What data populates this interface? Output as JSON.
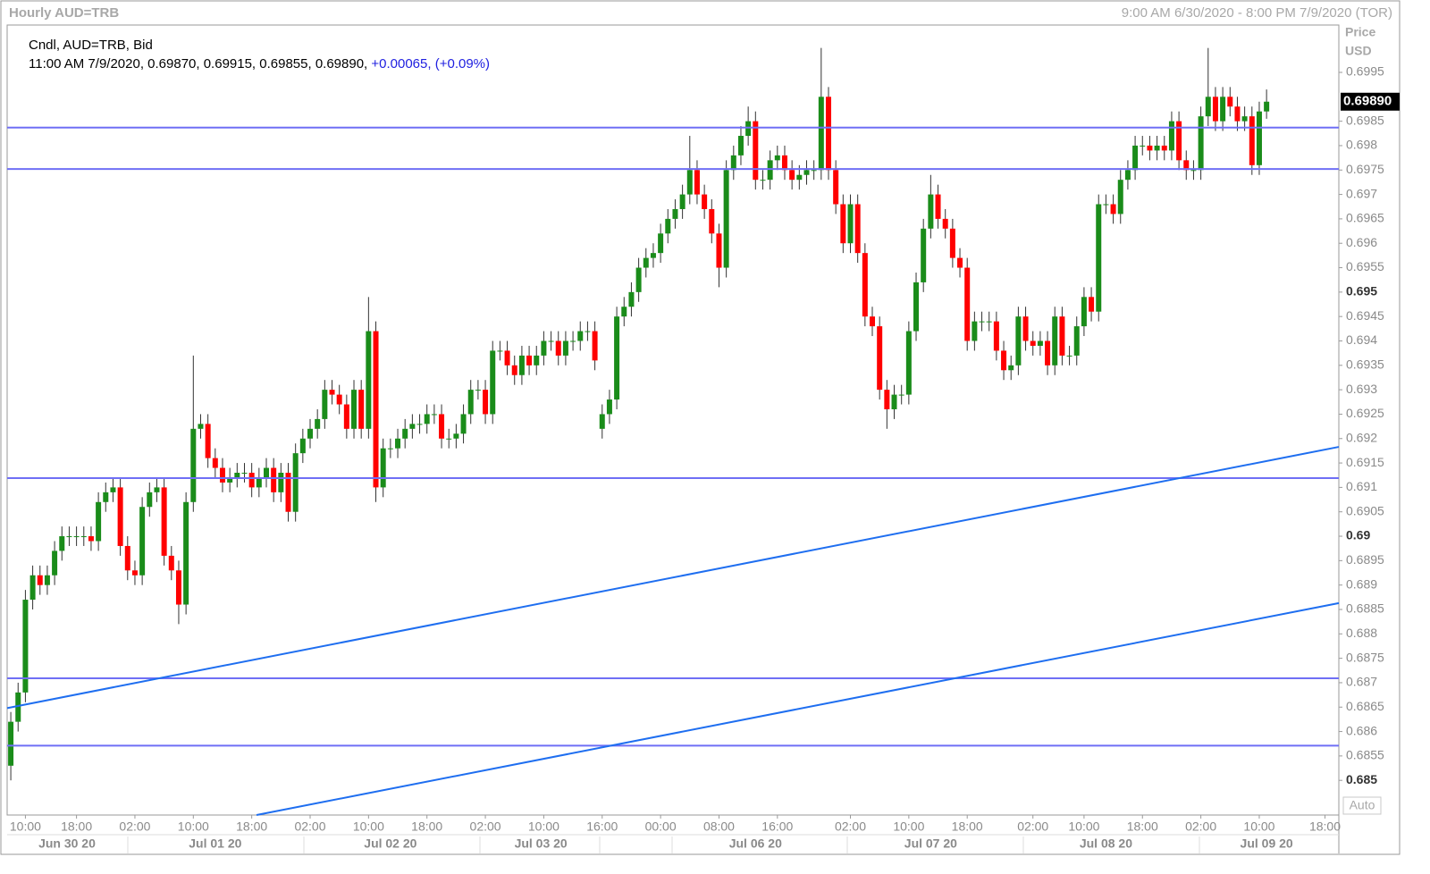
{
  "chart_data": {
    "type": "candlestick",
    "title": "Hourly AUD=TRB",
    "range_label": "9:00 AM 6/30/2020 - 8:00 PM 7/9/2020 (TOR)",
    "series_label": "Cndl, AUD=TRB, Bid",
    "info": "11:00 AM 7/9/2020, 0.69870, 0.69915, 0.69855, 0.69890,",
    "change": "+0.00065,",
    "change_pct": "(+0.09%)",
    "axis_title": "Price",
    "axis_unit": "USD",
    "auto_label": "Auto",
    "up_color": "#1a8c1a",
    "down_color": "#ff0000",
    "line_color": "#6f6ff5",
    "trend_color": "#1e6ef0",
    "last_price": {
      "value": 0.6989,
      "label": "0.69890"
    },
    "open": [
      0.6853,
      0.6862,
      0.6868,
      0.6887,
      0.6892,
      0.689,
      0.6892,
      0.6897,
      0.69,
      0.69,
      0.69,
      0.69,
      0.6899,
      0.6907,
      0.6909,
      0.691,
      0.6898,
      0.6893,
      0.6892,
      0.6906,
      0.6909,
      0.691,
      0.6896,
      0.6893,
      0.6886,
      0.6907,
      0.6922,
      0.6923,
      0.6916,
      0.6914,
      0.6911,
      0.6912,
      0.6913,
      0.6913,
      0.691,
      0.6912,
      0.6914,
      0.6909,
      0.6913,
      0.6905,
      0.6917,
      0.692,
      0.6922,
      0.6924,
      0.693,
      0.6929,
      0.6927,
      0.6922,
      0.693,
      0.6922,
      0.6942,
      0.691,
      0.6918,
      0.6918,
      0.692,
      0.6922,
      0.6923,
      0.6923,
      0.6925,
      0.6925,
      0.692,
      0.692,
      0.6921,
      0.6925,
      0.693,
      0.693,
      0.6925,
      0.6938,
      0.6938,
      0.6935,
      0.6933,
      0.6937,
      0.6935,
      0.6937,
      0.694,
      0.694,
      0.6937,
      0.694,
      0.694,
      0.6942,
      0.6942,
      0.6922,
      0.6925,
      0.6928,
      0.6945,
      0.6947,
      0.695,
      0.6955,
      0.6957,
      0.6958,
      0.6962,
      0.6965,
      0.6967,
      0.697,
      0.6975,
      0.697,
      0.6967,
      0.6962,
      0.6955,
      0.6975,
      0.6978,
      0.6982,
      0.6985,
      0.6973,
      0.6973,
      0.6977,
      0.6978,
      0.6975,
      0.6973,
      0.6974,
      0.6975,
      0.6975,
      0.699,
      0.6975,
      0.6968,
      0.696,
      0.6968,
      0.6958,
      0.6945,
      0.6943,
      0.693,
      0.6926,
      0.6929,
      0.6929,
      0.6942,
      0.6952,
      0.6963,
      0.697,
      0.6965,
      0.6963,
      0.6957,
      0.6955,
      0.694,
      0.6944,
      0.6944,
      0.6944,
      0.6938,
      0.6934,
      0.6935,
      0.6945,
      0.694,
      0.6939,
      0.694,
      0.6935,
      0.6945,
      0.6937,
      0.6937,
      0.6943,
      0.6949,
      0.6946,
      0.6968,
      0.6968,
      0.6966,
      0.6973,
      0.6975,
      0.698,
      0.698,
      0.6979,
      0.698,
      0.6979,
      0.6985,
      0.6977,
      0.6975,
      0.6975,
      0.6986,
      0.699,
      0.6985,
      0.699,
      0.6988,
      0.6985,
      0.6986,
      0.6976,
      0.6987
    ],
    "high": [
      0.6864,
      0.687,
      0.6889,
      0.6894,
      0.6894,
      0.6894,
      0.6899,
      0.6902,
      0.6902,
      0.6902,
      0.6902,
      0.6902,
      0.6909,
      0.6911,
      0.6912,
      0.6912,
      0.69,
      0.6895,
      0.6908,
      0.6911,
      0.6912,
      0.6912,
      0.6898,
      0.6895,
      0.6909,
      0.6937,
      0.6925,
      0.6925,
      0.6918,
      0.6916,
      0.6914,
      0.6915,
      0.6915,
      0.6915,
      0.6914,
      0.6916,
      0.6916,
      0.6915,
      0.6915,
      0.6919,
      0.6922,
      0.6924,
      0.6926,
      0.6932,
      0.6932,
      0.6931,
      0.6929,
      0.6932,
      0.6932,
      0.6949,
      0.6944,
      0.692,
      0.692,
      0.6922,
      0.6924,
      0.6925,
      0.6925,
      0.6927,
      0.6927,
      0.6927,
      0.6922,
      0.6923,
      0.6927,
      0.6932,
      0.6932,
      0.6932,
      0.694,
      0.694,
      0.694,
      0.6937,
      0.6939,
      0.6939,
      0.6939,
      0.6942,
      0.6942,
      0.6942,
      0.6942,
      0.6942,
      0.6944,
      0.6944,
      0.6944,
      0.6927,
      0.693,
      0.6947,
      0.6949,
      0.6952,
      0.6957,
      0.6959,
      0.696,
      0.6964,
      0.6967,
      0.6969,
      0.6972,
      0.6982,
      0.6977,
      0.6972,
      0.6969,
      0.6964,
      0.6977,
      0.698,
      0.6984,
      0.6988,
      0.6987,
      0.6975,
      0.6979,
      0.698,
      0.698,
      0.6977,
      0.6976,
      0.6977,
      0.6977,
      0.7,
      0.6992,
      0.6977,
      0.697,
      0.697,
      0.697,
      0.696,
      0.6947,
      0.6945,
      0.6932,
      0.6931,
      0.6931,
      0.6944,
      0.6954,
      0.6965,
      0.6974,
      0.6972,
      0.6967,
      0.6965,
      0.6959,
      0.6957,
      0.6946,
      0.6946,
      0.6946,
      0.6946,
      0.694,
      0.6937,
      0.6947,
      0.6947,
      0.6942,
      0.6942,
      0.6942,
      0.6947,
      0.6947,
      0.6939,
      0.6945,
      0.6951,
      0.6951,
      0.697,
      0.697,
      0.697,
      0.6975,
      0.6977,
      0.6982,
      0.6982,
      0.6982,
      0.6982,
      0.6982,
      0.6987,
      0.6987,
      0.6979,
      0.6977,
      0.6988,
      0.7,
      0.6992,
      0.6992,
      0.6992,
      0.699,
      0.6988,
      0.6988,
      0.6989,
      0.69915
    ],
    "low": [
      0.685,
      0.686,
      0.6866,
      0.6885,
      0.6888,
      0.6888,
      0.689,
      0.6895,
      0.6898,
      0.6898,
      0.6898,
      0.6897,
      0.6897,
      0.6905,
      0.6907,
      0.6896,
      0.6891,
      0.689,
      0.689,
      0.6904,
      0.6907,
      0.6894,
      0.6891,
      0.6882,
      0.6884,
      0.6905,
      0.692,
      0.6914,
      0.6912,
      0.6909,
      0.6909,
      0.691,
      0.6911,
      0.6908,
      0.6908,
      0.691,
      0.6907,
      0.6907,
      0.6903,
      0.6903,
      0.6915,
      0.6918,
      0.692,
      0.6922,
      0.6927,
      0.6925,
      0.692,
      0.692,
      0.692,
      0.692,
      0.6907,
      0.6908,
      0.6916,
      0.6916,
      0.6918,
      0.692,
      0.6921,
      0.6921,
      0.6923,
      0.6918,
      0.6918,
      0.6918,
      0.6919,
      0.6923,
      0.6928,
      0.6923,
      0.6923,
      0.6936,
      0.6933,
      0.6931,
      0.6931,
      0.6933,
      0.6933,
      0.6935,
      0.6938,
      0.6935,
      0.6935,
      0.6938,
      0.6938,
      0.694,
      0.6934,
      0.692,
      0.6923,
      0.6926,
      0.6943,
      0.6945,
      0.6948,
      0.6953,
      0.6955,
      0.6956,
      0.696,
      0.6963,
      0.6965,
      0.6968,
      0.6968,
      0.6965,
      0.696,
      0.6951,
      0.6953,
      0.6973,
      0.6976,
      0.698,
      0.6971,
      0.6971,
      0.6971,
      0.6975,
      0.6973,
      0.6971,
      0.6971,
      0.6972,
      0.6973,
      0.6973,
      0.6973,
      0.6966,
      0.6958,
      0.6958,
      0.6956,
      0.6943,
      0.6941,
      0.6928,
      0.6922,
      0.6924,
      0.6927,
      0.6927,
      0.694,
      0.695,
      0.6961,
      0.6963,
      0.6961,
      0.6955,
      0.6953,
      0.6938,
      0.6938,
      0.6942,
      0.6942,
      0.6936,
      0.6932,
      0.6932,
      0.6933,
      0.6938,
      0.6937,
      0.6937,
      0.6933,
      0.6933,
      0.6935,
      0.6935,
      0.6935,
      0.6941,
      0.6944,
      0.6944,
      0.6966,
      0.6964,
      0.6964,
      0.6971,
      0.6973,
      0.6978,
      0.6977,
      0.6977,
      0.6977,
      0.6977,
      0.6975,
      0.6973,
      0.6973,
      0.6973,
      0.6984,
      0.6983,
      0.6983,
      0.6986,
      0.6983,
      0.6983,
      0.6974,
      0.6974,
      0.69855
    ],
    "close": [
      0.6862,
      0.6868,
      0.6887,
      0.6892,
      0.689,
      0.6892,
      0.6897,
      0.69,
      0.69,
      0.69,
      0.69,
      0.6899,
      0.6907,
      0.6909,
      0.691,
      0.6898,
      0.6893,
      0.6892,
      0.6906,
      0.6909,
      0.691,
      0.6896,
      0.6893,
      0.6886,
      0.6907,
      0.6922,
      0.6923,
      0.6916,
      0.6914,
      0.6911,
      0.6912,
      0.6913,
      0.6913,
      0.691,
      0.6912,
      0.6914,
      0.6909,
      0.6913,
      0.6905,
      0.6917,
      0.692,
      0.6922,
      0.6924,
      0.693,
      0.6929,
      0.6927,
      0.6922,
      0.693,
      0.6922,
      0.6942,
      0.691,
      0.6918,
      0.6918,
      0.692,
      0.6922,
      0.6923,
      0.6923,
      0.6925,
      0.6925,
      0.692,
      0.692,
      0.6921,
      0.6925,
      0.693,
      0.693,
      0.6925,
      0.6938,
      0.6938,
      0.6935,
      0.6933,
      0.6937,
      0.6935,
      0.6937,
      0.694,
      0.694,
      0.6937,
      0.694,
      0.694,
      0.6942,
      0.6942,
      0.6936,
      0.6925,
      0.6928,
      0.6945,
      0.6947,
      0.695,
      0.6955,
      0.6957,
      0.6958,
      0.6962,
      0.6965,
      0.6967,
      0.697,
      0.6975,
      0.697,
      0.6967,
      0.6962,
      0.6955,
      0.6975,
      0.6978,
      0.6982,
      0.6985,
      0.6973,
      0.6973,
      0.6977,
      0.6978,
      0.6975,
      0.6973,
      0.6974,
      0.6975,
      0.6975,
      0.699,
      0.6975,
      0.6968,
      0.696,
      0.6968,
      0.6958,
      0.6945,
      0.6943,
      0.693,
      0.6926,
      0.6929,
      0.6929,
      0.6942,
      0.6952,
      0.6963,
      0.697,
      0.6965,
      0.6963,
      0.6957,
      0.6955,
      0.694,
      0.6944,
      0.6944,
      0.6944,
      0.6938,
      0.6934,
      0.6935,
      0.6945,
      0.694,
      0.6939,
      0.694,
      0.6935,
      0.6945,
      0.6937,
      0.6937,
      0.6943,
      0.6949,
      0.6946,
      0.6968,
      0.6968,
      0.6966,
      0.6973,
      0.6975,
      0.698,
      0.698,
      0.6979,
      0.698,
      0.6979,
      0.6985,
      0.6977,
      0.6975,
      0.6975,
      0.6986,
      0.699,
      0.6985,
      0.699,
      0.6988,
      0.6985,
      0.6986,
      0.6976,
      0.6987,
      0.6989
    ],
    "hlines": [
      0.69837,
      0.69752,
      0.69119,
      0.68709,
      0.68571
    ],
    "trendlines": [
      {
        "x": [
          -0.5,
          181.9
        ],
        "y": [
          0.68648,
          0.69183
        ]
      },
      {
        "x": [
          33.66,
          181.9
        ],
        "y": [
          0.68429,
          0.68863
        ]
      }
    ],
    "xlim": [
      -0.5,
      181.9
    ],
    "ylim": [
      0.68429,
      0.70047
    ],
    "yticks": [
      0.685,
      0.6855,
      0.686,
      0.6865,
      0.687,
      0.6875,
      0.688,
      0.6885,
      0.689,
      0.6895,
      0.69,
      0.6905,
      0.691,
      0.6915,
      0.692,
      0.6925,
      0.693,
      0.6935,
      0.694,
      0.6945,
      0.695,
      0.6955,
      0.696,
      0.6965,
      0.697,
      0.6975,
      0.698,
      0.6985,
      0.6995
    ],
    "xticks": [
      {
        "value": 2,
        "label": "10:00"
      },
      {
        "value": 9,
        "label": "18:00"
      },
      {
        "value": 17,
        "label": "02:00"
      },
      {
        "value": 25,
        "label": "10:00"
      },
      {
        "value": 33,
        "label": "18:00"
      },
      {
        "value": 41,
        "label": "02:00"
      },
      {
        "value": 49,
        "label": "10:00"
      },
      {
        "value": 57,
        "label": "18:00"
      },
      {
        "value": 65,
        "label": "02:00"
      },
      {
        "value": 73,
        "label": "10:00"
      },
      {
        "value": 81,
        "label": "16:00"
      },
      {
        "value": 89,
        "label": "00:00"
      },
      {
        "value": 97,
        "label": "08:00"
      },
      {
        "value": 105,
        "label": "16:00"
      },
      {
        "value": 115,
        "label": "02:00"
      },
      {
        "value": 123,
        "label": "10:00"
      },
      {
        "value": 131,
        "label": "18:00"
      },
      {
        "value": 140,
        "label": "02:00"
      },
      {
        "value": 147,
        "label": "10:00"
      },
      {
        "value": 155,
        "label": "18:00"
      },
      {
        "value": 163,
        "label": "02:00"
      },
      {
        "value": 171,
        "label": "10:00"
      },
      {
        "value": 180,
        "label": "18:00"
      }
    ],
    "date_labels": [
      {
        "value": 7.7,
        "label": "Jun 30 20"
      },
      {
        "value": 28,
        "label": "Jul 01 20"
      },
      {
        "value": 52,
        "label": "Jul 02 20"
      },
      {
        "value": 72.6,
        "label": "Jul 03 20"
      },
      {
        "value": 102,
        "label": "Jul 06 20"
      },
      {
        "value": 126,
        "label": "Jul 07 20"
      },
      {
        "value": 150,
        "label": "Jul 08 20"
      },
      {
        "value": 172,
        "label": "Jul 09 20"
      }
    ]
  }
}
